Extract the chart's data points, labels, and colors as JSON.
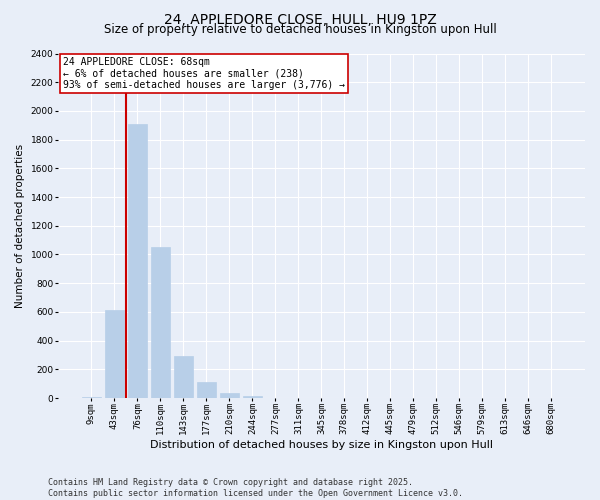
{
  "title": "24, APPLEDORE CLOSE, HULL, HU9 1PZ",
  "subtitle": "Size of property relative to detached houses in Kingston upon Hull",
  "xlabel": "Distribution of detached houses by size in Kingston upon Hull",
  "ylabel": "Number of detached properties",
  "categories": [
    "9sqm",
    "43sqm",
    "76sqm",
    "110sqm",
    "143sqm",
    "177sqm",
    "210sqm",
    "244sqm",
    "277sqm",
    "311sqm",
    "345sqm",
    "378sqm",
    "412sqm",
    "445sqm",
    "479sqm",
    "512sqm",
    "546sqm",
    "579sqm",
    "613sqm",
    "646sqm",
    "680sqm"
  ],
  "values": [
    10,
    610,
    1910,
    1050,
    295,
    115,
    37,
    15,
    0,
    0,
    0,
    0,
    0,
    0,
    0,
    0,
    0,
    0,
    0,
    0,
    0
  ],
  "bar_color": "#b8cfe8",
  "bar_edgecolor": "#b8cfe8",
  "redline_color": "#cc0000",
  "annotation_text": "24 APPLEDORE CLOSE: 68sqm\n← 6% of detached houses are smaller (238)\n93% of semi-detached houses are larger (3,776) →",
  "annotation_box_facecolor": "#ffffff",
  "annotation_box_edgecolor": "#cc0000",
  "background_color": "#e8eef8",
  "grid_color": "#ffffff",
  "footer": "Contains HM Land Registry data © Crown copyright and database right 2025.\nContains public sector information licensed under the Open Government Licence v3.0.",
  "ylim": [
    0,
    2400
  ],
  "yticks": [
    0,
    200,
    400,
    600,
    800,
    1000,
    1200,
    1400,
    1600,
    1800,
    2000,
    2200,
    2400
  ],
  "title_fontsize": 10,
  "subtitle_fontsize": 8.5,
  "xlabel_fontsize": 8,
  "ylabel_fontsize": 7.5,
  "tick_fontsize": 6.5,
  "annotation_fontsize": 7,
  "footer_fontsize": 6
}
